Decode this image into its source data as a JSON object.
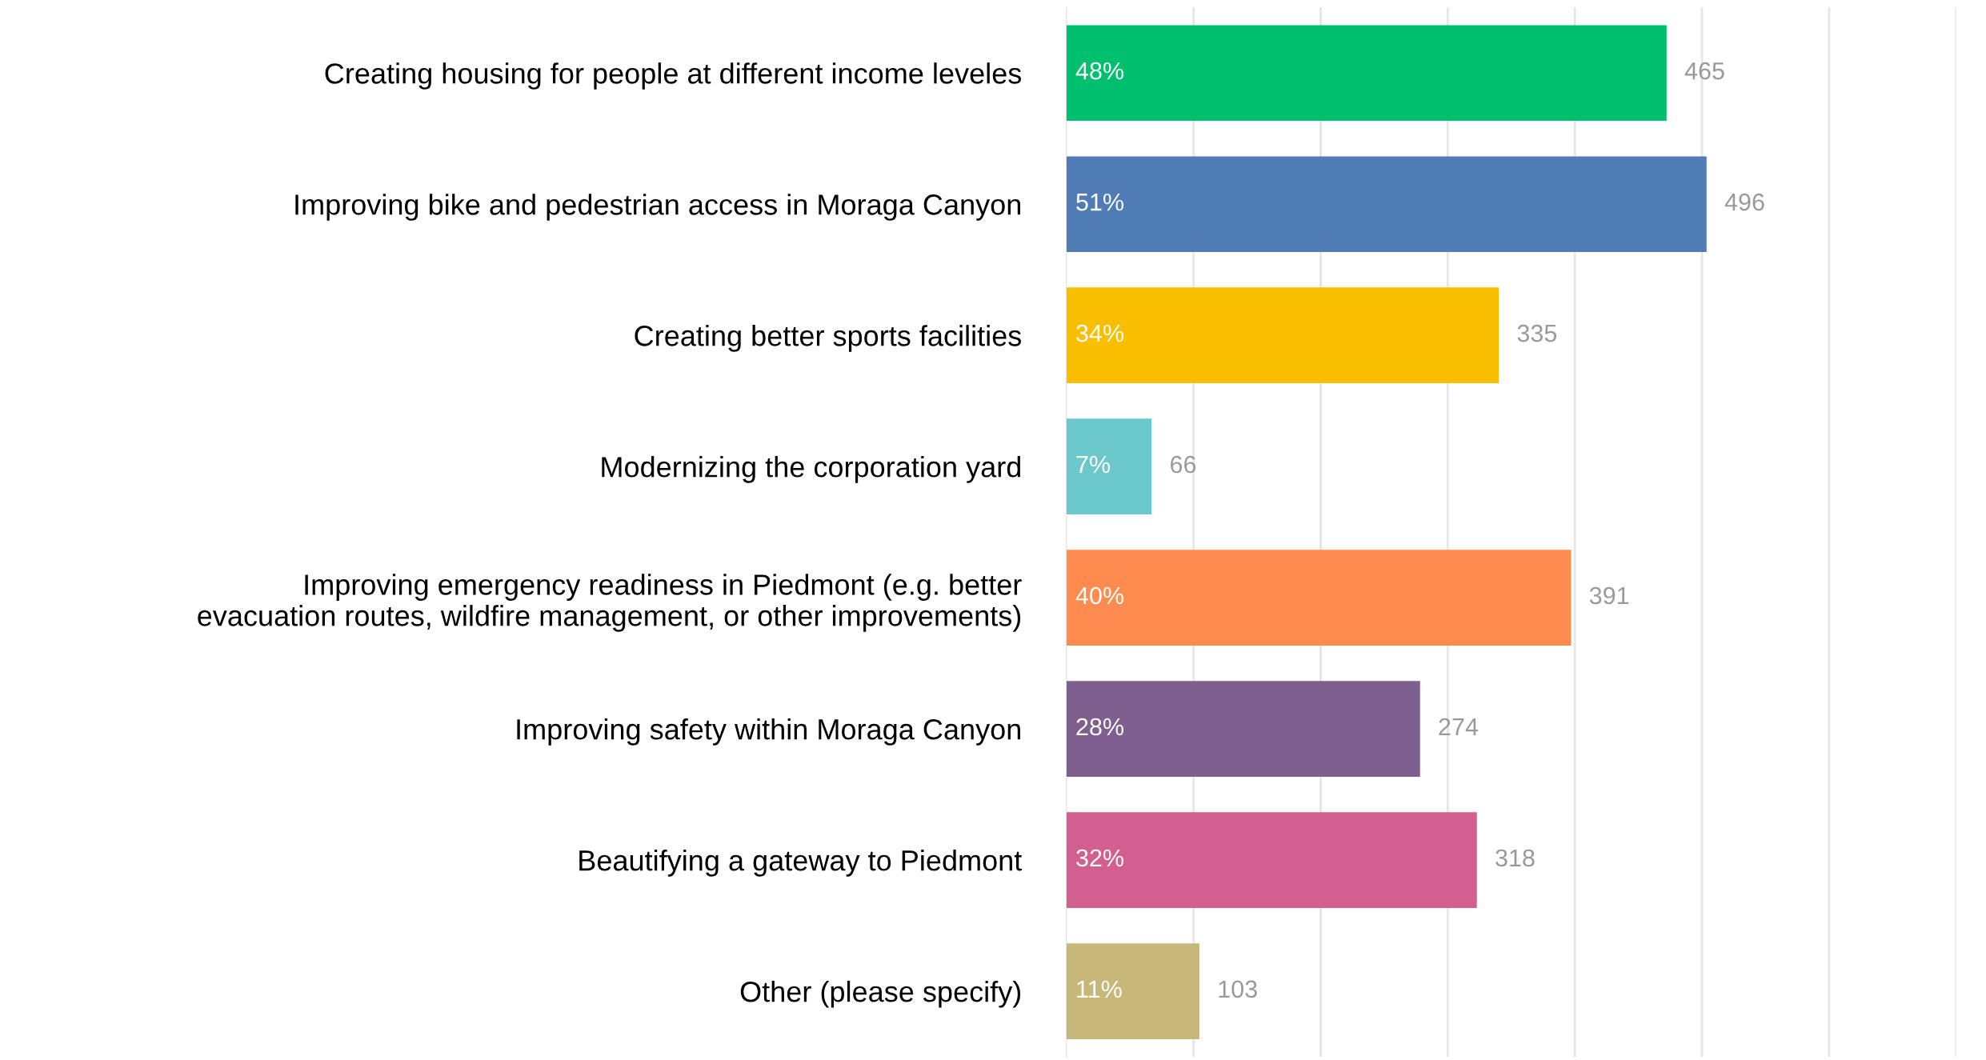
{
  "chart_data": {
    "type": "bar",
    "orientation": "horizontal",
    "categories": [
      "Creating housing for people at different income leveles",
      "Improving bike and pedestrian access in Moraga Canyon",
      "Creating better sports facilities",
      "Modernizing the corporation yard",
      "Improving emergency readiness in Piedmont (e.g. better\nevacuation routes, wildfire management, or other improvements)",
      "Improving safety within Moraga Canyon",
      "Beautifying a gateway to Piedmont",
      "Other (please specify)"
    ],
    "values": [
      465,
      496,
      335,
      66,
      391,
      274,
      318,
      103
    ],
    "colors": [
      "#00bf6f",
      "#507cb6",
      "#f9be00",
      "#6bc8cd",
      "#ff8b4f",
      "#7f5f8f",
      "#d25f90",
      "#c7b879"
    ],
    "data_labels": true,
    "annotations": [
      "48%",
      "51%",
      "34%",
      "7%",
      "40%",
      "28%",
      "32%",
      "11%"
    ],
    "grid": "x",
    "tick_labels": "y"
  }
}
